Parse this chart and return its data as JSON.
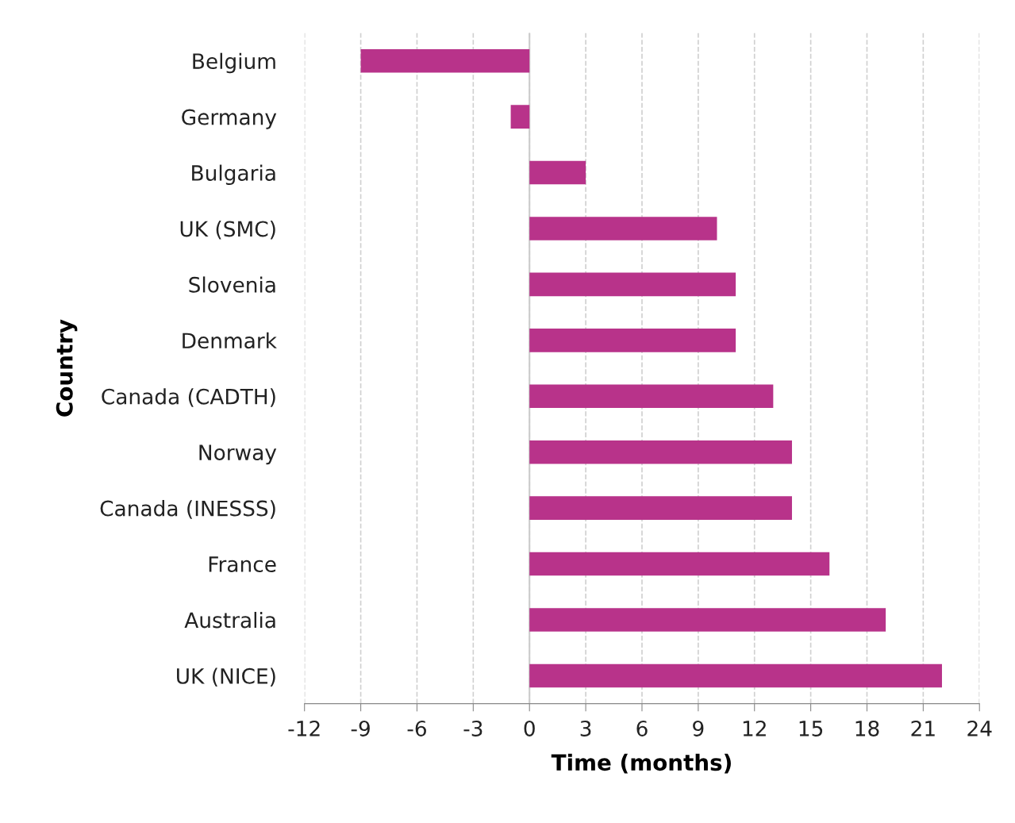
{
  "chart_data": {
    "type": "bar",
    "orientation": "horizontal",
    "xlabel": "Time (months)",
    "ylabel": "Country",
    "categories": [
      "Belgium",
      "Germany",
      "Bulgaria",
      "UK (SMC)",
      "Slovenia",
      "Denmark",
      "Canada (CADTH)",
      "Norway",
      "Canada (INESSS)",
      "France",
      "Australia",
      "UK (NICE)"
    ],
    "values": [
      -9,
      -1,
      3,
      10,
      11,
      11,
      13,
      14,
      14,
      16,
      19,
      22
    ],
    "color": "#b8338a",
    "xlim": [
      -12,
      24
    ],
    "xticks": [
      -12,
      -9,
      -6,
      -3,
      0,
      3,
      6,
      9,
      12,
      15,
      18,
      21,
      24
    ],
    "grid": "x",
    "line_style": "dashed",
    "ref_lines": [
      {
        "axis": "x",
        "value": 0,
        "color": "#cccccc"
      }
    ]
  }
}
